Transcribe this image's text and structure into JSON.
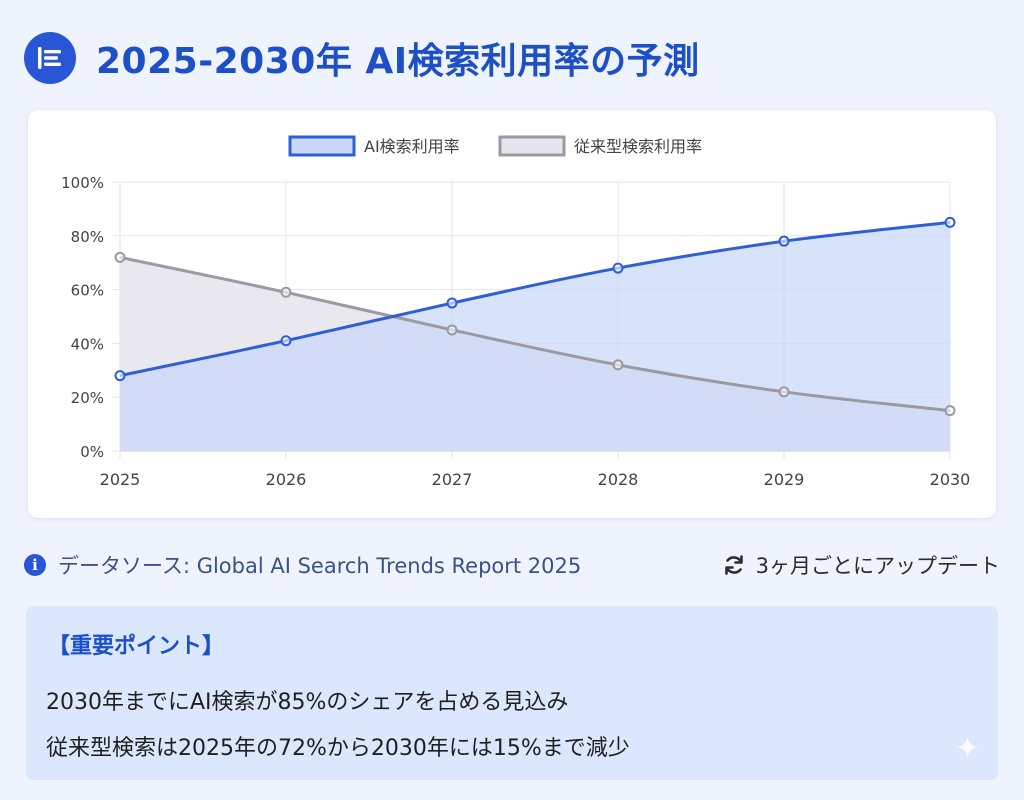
{
  "header": {
    "title": "2025-2030年 AI検索利用率の予測",
    "icon": "document-list-icon"
  },
  "chart_data": {
    "type": "area",
    "categories": [
      "2025",
      "2026",
      "2027",
      "2028",
      "2029",
      "2030"
    ],
    "series": [
      {
        "name": "AI検索利用率",
        "values": [
          28,
          41,
          55,
          68,
          78,
          85
        ],
        "color": "#2f5fd4",
        "fill": "#c9d8f9"
      },
      {
        "name": "従来型検索利用率",
        "values": [
          72,
          59,
          45,
          32,
          22,
          15
        ],
        "color": "#9a9aa0",
        "fill": "#e6e4ec"
      }
    ],
    "ylim": [
      0,
      100
    ],
    "yticks": [
      "0%",
      "20%",
      "40%",
      "60%",
      "80%",
      "100%"
    ],
    "grid": true,
    "legend_position": "top"
  },
  "info": {
    "source_label": "データソース: Global AI Search Trends Report 2025",
    "update_label": "3ヶ月ごとにアップデート"
  },
  "key_points": {
    "title": "【重要ポイント】",
    "items": [
      "2030年までにAI検索が85%のシェアを占める見込み",
      "従来型検索は2025年の72%から2030年には15%まで減少"
    ]
  }
}
